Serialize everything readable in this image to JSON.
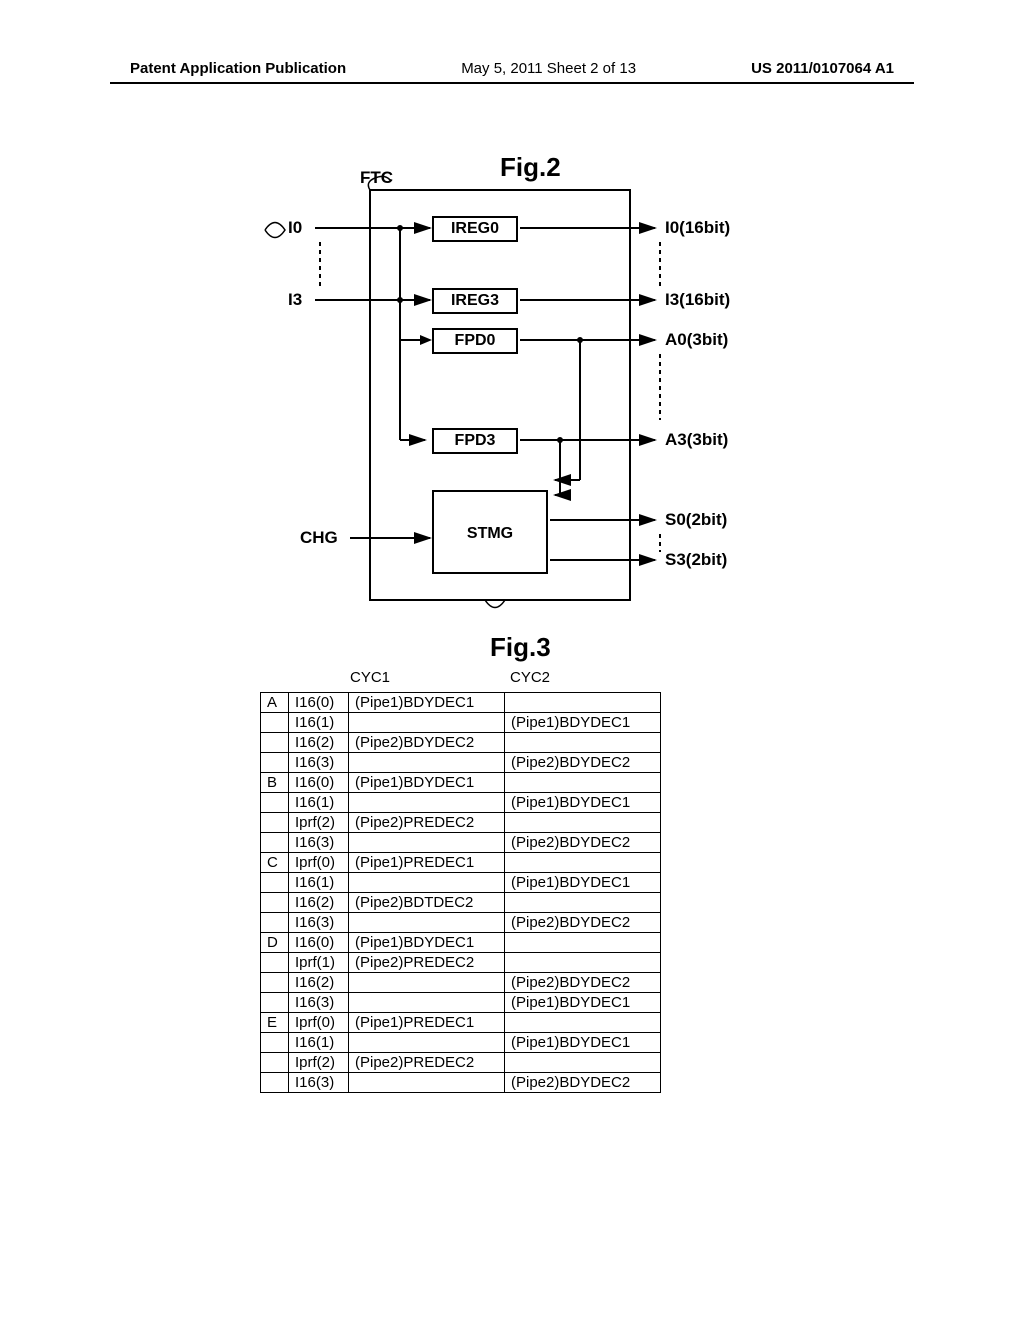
{
  "header": {
    "left": "Patent Application Publication",
    "center": "May 5, 2011  Sheet 2 of 13",
    "right": "US 2011/0107064 A1"
  },
  "fig2": {
    "label": "Fig.2",
    "ftc": "FTC",
    "inputs": {
      "i0": "I0",
      "i3": "I3",
      "chg": "CHG"
    },
    "boxes": {
      "ireg0": "IREG0",
      "ireg3": "IREG3",
      "fpd0": "FPD0",
      "fpd3": "FPD3",
      "stmg": "STMG"
    },
    "outputs": {
      "i0": "I0(16bit)",
      "i3": "I3(16bit)",
      "a0": "A0(3bit)",
      "a3": "A3(3bit)",
      "s0": "S0(2bit)",
      "s3": "S3(2bit)"
    },
    "colors": {
      "line": "#000000",
      "bg": "#ffffff"
    },
    "line_width": 2
  },
  "fig3": {
    "label": "Fig.3",
    "headers": {
      "cyc1": "CYC1",
      "cyc2": "CYC2"
    },
    "groups": [
      {
        "id": "A",
        "rows": [
          {
            "inst": "I16(0)",
            "cyc1": "(Pipe1)BDYDEC1",
            "cyc2": ""
          },
          {
            "inst": "I16(1)",
            "cyc1": "",
            "cyc2": "(Pipe1)BDYDEC1"
          },
          {
            "inst": "I16(2)",
            "cyc1": "(Pipe2)BDYDEC2",
            "cyc2": ""
          },
          {
            "inst": "I16(3)",
            "cyc1": "",
            "cyc2": "(Pipe2)BDYDEC2"
          }
        ]
      },
      {
        "id": "B",
        "rows": [
          {
            "inst": "I16(0)",
            "cyc1": "(Pipe1)BDYDEC1",
            "cyc2": ""
          },
          {
            "inst": "I16(1)",
            "cyc1": "",
            "cyc2": "(Pipe1)BDYDEC1"
          },
          {
            "inst": "Iprf(2)",
            "cyc1": "(Pipe2)PREDEC2",
            "cyc2": ""
          },
          {
            "inst": "I16(3)",
            "cyc1": "",
            "cyc2": "(Pipe2)BDYDEC2"
          }
        ]
      },
      {
        "id": "C",
        "rows": [
          {
            "inst": "Iprf(0)",
            "cyc1": "(Pipe1)PREDEC1",
            "cyc2": ""
          },
          {
            "inst": "I16(1)",
            "cyc1": "",
            "cyc2": "(Pipe1)BDYDEC1"
          },
          {
            "inst": "I16(2)",
            "cyc1": "(Pipe2)BDTDEC2",
            "cyc2": ""
          },
          {
            "inst": "I16(3)",
            "cyc1": "",
            "cyc2": "(Pipe2)BDYDEC2"
          }
        ]
      },
      {
        "id": "D",
        "rows": [
          {
            "inst": "I16(0)",
            "cyc1": "(Pipe1)BDYDEC1",
            "cyc2": ""
          },
          {
            "inst": "Iprf(1)",
            "cyc1": "(Pipe2)PREDEC2",
            "cyc2": ""
          },
          {
            "inst": "I16(2)",
            "cyc1": "",
            "cyc2": "(Pipe2)BDYDEC2"
          },
          {
            "inst": "I16(3)",
            "cyc1": "",
            "cyc2": "(Pipe1)BDYDEC1"
          }
        ]
      },
      {
        "id": "E",
        "rows": [
          {
            "inst": "Iprf(0)",
            "cyc1": "(Pipe1)PREDEC1",
            "cyc2": ""
          },
          {
            "inst": "I16(1)",
            "cyc1": "",
            "cyc2": "(Pipe1)BDYDEC1"
          },
          {
            "inst": "Iprf(2)",
            "cyc1": "(Pipe2)PREDEC2",
            "cyc2": ""
          },
          {
            "inst": "I16(3)",
            "cyc1": "",
            "cyc2": "(Pipe2)BDYDEC2"
          }
        ]
      }
    ]
  }
}
